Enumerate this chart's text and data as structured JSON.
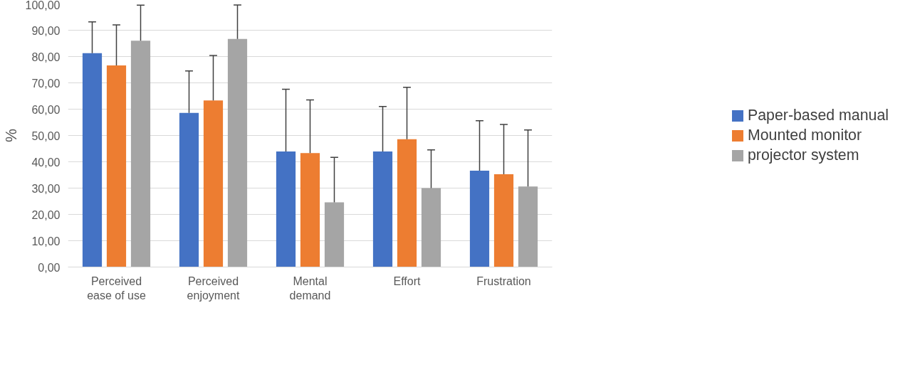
{
  "chart_data": {
    "type": "bar",
    "ylabel": "%",
    "categories": [
      "Perceived ease of use",
      "Perceived enjoyment",
      "Mental demand",
      "Effort",
      "Frustration"
    ],
    "series": [
      {
        "name": "Paper-based manual",
        "color": "#4472c4",
        "values": [
          81.3,
          58.6,
          43.9,
          43.9,
          36.6
        ],
        "errors": [
          [
            81.3,
            93.2
          ],
          [
            58.6,
            74.5
          ],
          [
            43.9,
            67.6
          ],
          [
            43.9,
            61.0
          ],
          [
            36.6,
            55.6
          ]
        ]
      },
      {
        "name": "Mounted monitor",
        "color": "#ed7d31",
        "values": [
          76.6,
          63.3,
          43.3,
          48.6,
          35.3
        ],
        "errors": [
          [
            76.6,
            92.0
          ],
          [
            63.3,
            80.4
          ],
          [
            43.3,
            63.5
          ],
          [
            48.6,
            68.3
          ],
          [
            35.3,
            54.2
          ]
        ]
      },
      {
        "name": "projector system",
        "color": "#a5a5a5",
        "values": [
          86.0,
          86.7,
          24.6,
          30.0,
          30.6
        ],
        "errors": [
          [
            86.0,
            99.5
          ],
          [
            86.7,
            99.6
          ],
          [
            24.6,
            41.7
          ],
          [
            30.0,
            44.5
          ],
          [
            30.6,
            52.1
          ]
        ]
      }
    ],
    "ylim": [
      0,
      100
    ],
    "yticks": [
      {
        "value": 0,
        "label": "0,00"
      },
      {
        "value": 10,
        "label": "10,00"
      },
      {
        "value": 20,
        "label": "20,00"
      },
      {
        "value": 30,
        "label": "30,00"
      },
      {
        "value": 40,
        "label": "40,00"
      },
      {
        "value": 50,
        "label": "50,00"
      },
      {
        "value": 60,
        "label": "60,00"
      },
      {
        "value": 70,
        "label": "70,00"
      },
      {
        "value": 80,
        "label": "80,00"
      },
      {
        "value": 90,
        "label": "90,00"
      },
      {
        "value": 100,
        "label": "100,00"
      }
    ],
    "grid": "y",
    "legend": "right"
  }
}
